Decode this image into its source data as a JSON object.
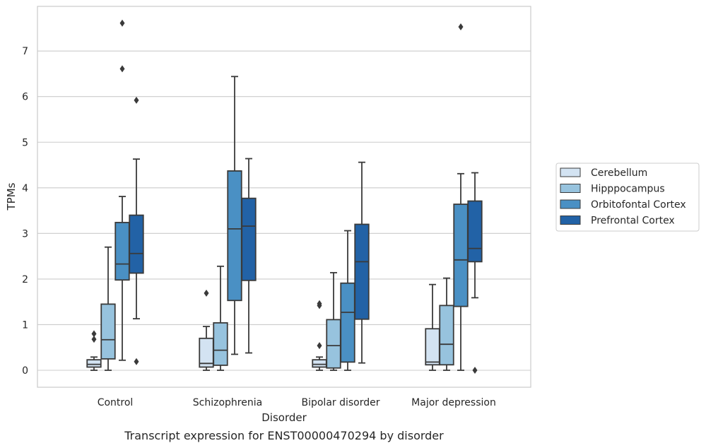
{
  "colors": {
    "background": "#ffffff",
    "grid": "#cccccc",
    "frame": "#cccccc",
    "line": "#3a3a3a",
    "series": [
      "#d3e3f2",
      "#97c3de",
      "#4a90c4",
      "#2262a6"
    ]
  },
  "caption": "Transcript expression for ENST00000470294 by disorder",
  "chart_data": {
    "type": "box",
    "xlabel": "Disorder",
    "ylabel": "TPMs",
    "ylim": [
      -0.35,
      8.0
    ],
    "yticks": [
      0,
      1,
      2,
      3,
      4,
      5,
      6,
      7
    ],
    "grid": true,
    "legend_position": "right",
    "categories": [
      "Control",
      "Schizophrenia",
      "Bipolar disorder",
      "Major depression"
    ],
    "series": [
      {
        "name": "Cerebellum",
        "boxes": [
          {
            "whislo": 0.0,
            "q1": 0.07,
            "med": 0.13,
            "q3": 0.23,
            "whishi": 0.29,
            "fliers": [
              0.68,
              0.8
            ]
          },
          {
            "whislo": 0.0,
            "q1": 0.07,
            "med": 0.15,
            "q3": 0.7,
            "whishi": 0.96,
            "fliers": [
              1.69
            ]
          },
          {
            "whislo": 0.0,
            "q1": 0.07,
            "med": 0.13,
            "q3": 0.23,
            "whishi": 0.29,
            "fliers": [
              0.54,
              1.42,
              1.46
            ]
          },
          {
            "whislo": 0.0,
            "q1": 0.12,
            "med": 0.18,
            "q3": 0.91,
            "whishi": 1.88,
            "fliers": []
          }
        ]
      },
      {
        "name": "Hipppocampus",
        "boxes": [
          {
            "whislo": 0.0,
            "q1": 0.25,
            "med": 0.67,
            "q3": 1.45,
            "whishi": 2.7,
            "fliers": []
          },
          {
            "whislo": 0.0,
            "q1": 0.11,
            "med": 0.44,
            "q3": 1.04,
            "whishi": 2.28,
            "fliers": []
          },
          {
            "whislo": 0.0,
            "q1": 0.05,
            "med": 0.54,
            "q3": 1.11,
            "whishi": 2.14,
            "fliers": []
          },
          {
            "whislo": 0.0,
            "q1": 0.12,
            "med": 0.57,
            "q3": 1.42,
            "whishi": 2.02,
            "fliers": []
          }
        ]
      },
      {
        "name": "Orbitofontal Cortex",
        "boxes": [
          {
            "whislo": 0.22,
            "q1": 1.98,
            "med": 2.33,
            "q3": 3.24,
            "whishi": 3.81,
            "fliers": [
              6.61,
              7.61
            ]
          },
          {
            "whislo": 0.35,
            "q1": 1.53,
            "med": 3.1,
            "q3": 4.37,
            "whishi": 6.44,
            "fliers": []
          },
          {
            "whislo": 0.0,
            "q1": 0.18,
            "med": 1.27,
            "q3": 1.91,
            "whishi": 3.06,
            "fliers": []
          },
          {
            "whislo": 0.0,
            "q1": 1.4,
            "med": 2.42,
            "q3": 3.64,
            "whishi": 4.31,
            "fliers": [
              7.53
            ]
          }
        ]
      },
      {
        "name": "Prefrontal Cortex",
        "boxes": [
          {
            "whislo": 1.13,
            "q1": 2.13,
            "med": 2.56,
            "q3": 3.4,
            "whishi": 4.63,
            "fliers": [
              0.19,
              5.92
            ]
          },
          {
            "whislo": 0.38,
            "q1": 1.97,
            "med": 3.16,
            "q3": 3.77,
            "whishi": 4.64,
            "fliers": []
          },
          {
            "whislo": 0.16,
            "q1": 1.12,
            "med": 2.38,
            "q3": 3.2,
            "whishi": 4.56,
            "fliers": []
          },
          {
            "whislo": 1.59,
            "q1": 2.38,
            "med": 2.67,
            "q3": 3.71,
            "whishi": 4.33,
            "fliers": [
              0.0
            ]
          }
        ]
      }
    ]
  }
}
